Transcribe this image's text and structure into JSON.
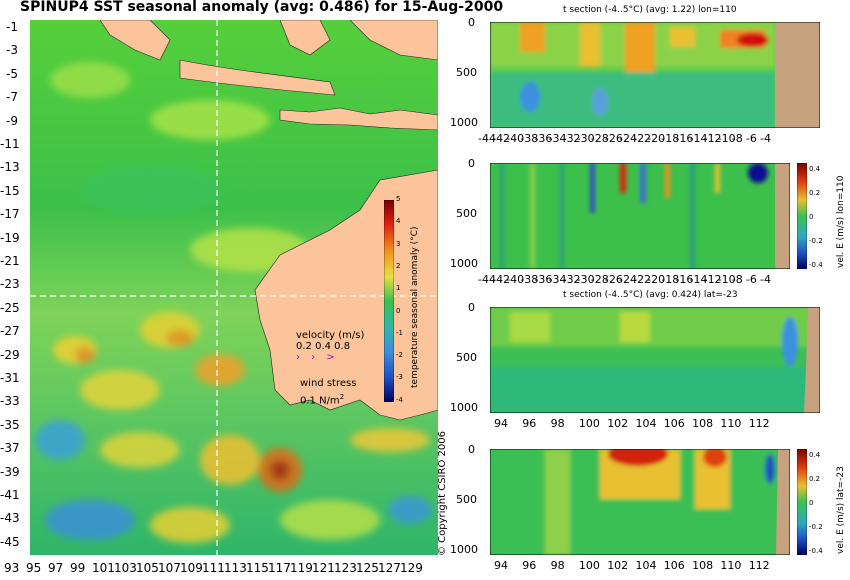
{
  "main_map": {
    "title": "SPINUP4 SST seasonal anomaly (avg: 0.486) for 15-Aug-2000",
    "lat_ticks": [
      "-1",
      "-3",
      "-5",
      "-7",
      "-9",
      "-11",
      "-13",
      "-15",
      "-17",
      "-19",
      "-21",
      "-23",
      "-25",
      "-27",
      "-29",
      "-31",
      "-33",
      "-35",
      "-37",
      "-39",
      "-41",
      "-43",
      "-45"
    ],
    "lon_ticks": [
      "93",
      "95",
      "97",
      "99",
      "101",
      "103",
      "105",
      "107",
      "109",
      "111",
      "113",
      "115",
      "117",
      "119",
      "121",
      "123",
      "125",
      "127",
      "129"
    ],
    "colorbar": {
      "ticks": [
        "5",
        "4",
        "3",
        "2",
        "1",
        "0",
        "-1",
        "-2",
        "-3",
        "-4"
      ],
      "label": "temperature seasonal anomaly (°C)"
    },
    "velocity_legend": {
      "title": "velocity (m/s)",
      "values": "0.2 0.4 0.8"
    },
    "wind_legend": {
      "title": "wind stress",
      "value": "0.1 N/m",
      "exponent": "2"
    },
    "copyright": "© Copyright CSIRO 2006",
    "section_lat": -23,
    "section_lon": 110
  },
  "panels": {
    "p1": {
      "title": "t section (-4..5°C) (avg: 1.22) lon=110",
      "y_ticks": [
        "0",
        "500",
        "1000"
      ],
      "x_ticks": [
        "-44",
        "-42",
        "-40",
        "-38",
        "-36",
        "-34",
        "-32",
        "-30",
        "-28",
        "-26",
        "-24",
        "-22",
        "-20",
        "-18",
        "-16",
        "-14",
        "-12",
        "-10",
        "-8",
        "-6",
        "-4"
      ]
    },
    "p2": {
      "y_ticks": [
        "0",
        "500",
        "1000"
      ],
      "x_ticks": [
        "-44",
        "-42",
        "-40",
        "-38",
        "-36",
        "-34",
        "-32",
        "-30",
        "-28",
        "-26",
        "-24",
        "-22",
        "-20",
        "-18",
        "-16",
        "-14",
        "-12",
        "-10",
        "-8",
        "-6",
        "-4"
      ],
      "colorbar_ticks": [
        "0.4",
        "0.2",
        "0",
        "-0.2",
        "-0.4"
      ],
      "side_label": "vel. E (m/s) lon=110"
    },
    "p3": {
      "title": "t section (-4..5°C) (avg: 0.424) lat=-23",
      "y_ticks": [
        "0",
        "500",
        "1000"
      ],
      "x_ticks": [
        "94",
        "96",
        "98",
        "100",
        "102",
        "104",
        "106",
        "108",
        "110",
        "112"
      ]
    },
    "p4": {
      "y_ticks": [
        "0",
        "500",
        "1000"
      ],
      "x_ticks": [
        "94",
        "96",
        "98",
        "100",
        "102",
        "104",
        "106",
        "108",
        "110",
        "112"
      ],
      "colorbar_ticks": [
        "0.4",
        "0.2",
        "0",
        "-0.2",
        "-0.4"
      ],
      "side_label": "vel. E (m/s) lat=-23"
    }
  },
  "colors": {
    "land": "#fcc49a",
    "land_section": "#c6a27e",
    "ocean_mid": "#2fb843",
    "warm": "#e8801a",
    "cool": "#3a8fe0"
  }
}
